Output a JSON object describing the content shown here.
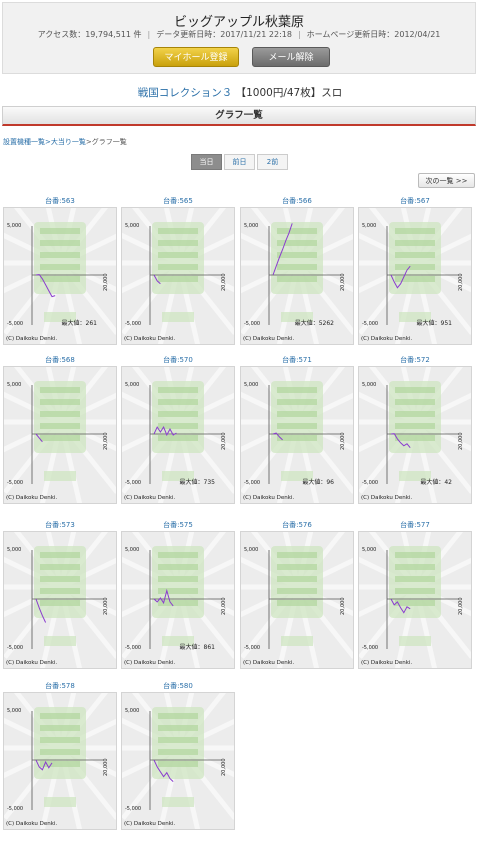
{
  "header": {
    "title": "ビッグアップル秋葉原",
    "access_label": "アクセス数：19,794,511 件",
    "data_updated_label": "データ更新日時：2017/11/21 22:18",
    "homepage_updated_label": "ホームページ更新日時：2012/04/21",
    "separator": "|",
    "mylist_button": "マイホール登録",
    "mail_button": "メール解除"
  },
  "machine": {
    "name": "戦国コレクション３",
    "rate": "【1000円/47枚】スロ"
  },
  "section_title": "グラフ一覧",
  "breadcrumb": {
    "item1": "設置機種一覧",
    "item2": ">大当り一覧",
    "item3": ">グラフ一覧"
  },
  "day_tabs": [
    "当日",
    "前日",
    "2前"
  ],
  "next_button": "次の一覧 >>",
  "graph_common": {
    "y_top": "5,000",
    "y_bottom": "-5,000",
    "x_label": "20,000",
    "copyright": "(C) Daikoku Denki.",
    "line_color": "#8a3ccf"
  },
  "machines": [
    {
      "label": "台番:563",
      "max": "最大値：261",
      "trend": [
        0,
        50,
        -400,
        -1000,
        -1600,
        -2200,
        -2100
      ]
    },
    {
      "label": "台番:565",
      "max": "",
      "trend": [
        0,
        -600,
        -900
      ]
    },
    {
      "label": "台番:566",
      "max": "最大値：5262",
      "trend": [
        0,
        900,
        1800,
        2600,
        3500,
        4300,
        5262
      ]
    },
    {
      "label": "台番:567",
      "max": "最大値：951",
      "trend": [
        0,
        -700,
        -1300,
        -900,
        -200,
        500,
        900
      ]
    },
    {
      "label": "台番:568",
      "max": "",
      "trend": [
        0,
        -400,
        -800
      ]
    },
    {
      "label": "台番:570",
      "max": "最大値：735",
      "trend": [
        0,
        700,
        200,
        700,
        -100,
        500,
        -100,
        100
      ]
    },
    {
      "label": "台番:571",
      "max": "最大値：96",
      "trend": [
        0,
        96,
        -300,
        -600
      ]
    },
    {
      "label": "台番:572",
      "max": "最大値：42",
      "trend": [
        0,
        42,
        -500,
        -900,
        -1200,
        -1000,
        -1400
      ]
    },
    {
      "label": "台番:573",
      "max": "",
      "trend": [
        0,
        -900,
        -1700,
        -2400
      ]
    },
    {
      "label": "台番:575",
      "max": "最大値：861",
      "trend": [
        0,
        -300,
        100,
        -400,
        861,
        -300,
        -700
      ]
    },
    {
      "label": "台番:576",
      "max": "",
      "trend": []
    },
    {
      "label": "台番:577",
      "max": "",
      "trend": [
        0,
        -600,
        -300,
        -900,
        -1400,
        -800,
        -1000
      ]
    },
    {
      "label": "台番:578",
      "max": "",
      "trend": [
        0,
        -700,
        -1000,
        -200,
        -800,
        -300
      ]
    },
    {
      "label": "台番:580",
      "max": "",
      "trend": [
        0,
        -700,
        -1200,
        -1700,
        -1300,
        -1900,
        -2200
      ]
    }
  ]
}
